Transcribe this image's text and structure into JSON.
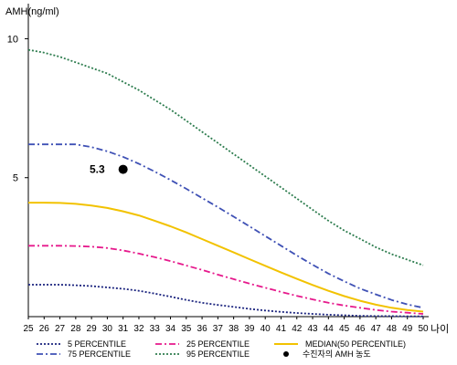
{
  "chart_data": {
    "type": "line",
    "ylabel": "AMH(ng/ml)",
    "xlabel": "나이",
    "x": [
      25,
      26,
      27,
      28,
      29,
      30,
      31,
      32,
      33,
      34,
      35,
      36,
      37,
      38,
      39,
      40,
      41,
      42,
      43,
      44,
      45,
      46,
      47,
      48,
      49,
      50
    ],
    "xlim": [
      25,
      50
    ],
    "ylim": [
      0,
      11
    ],
    "yticks": [
      5,
      10
    ],
    "grid": false,
    "legend_position": "bottom",
    "series": [
      {
        "name": "5 PERCENTILE",
        "color": "#1a237e",
        "style": "dotted",
        "values": [
          1.15,
          1.15,
          1.15,
          1.13,
          1.1,
          1.05,
          1.0,
          0.93,
          0.83,
          0.72,
          0.6,
          0.5,
          0.42,
          0.35,
          0.28,
          0.22,
          0.17,
          0.13,
          0.1,
          0.07,
          0.05,
          0.03,
          0.02,
          0.02,
          0.01,
          0.01
        ]
      },
      {
        "name": "25 PERCENTILE",
        "color": "#e6198c",
        "style": "dashdot",
        "values": [
          2.55,
          2.55,
          2.55,
          2.54,
          2.52,
          2.47,
          2.38,
          2.27,
          2.14,
          2.0,
          1.84,
          1.68,
          1.51,
          1.35,
          1.19,
          1.04,
          0.89,
          0.75,
          0.62,
          0.5,
          0.4,
          0.32,
          0.24,
          0.18,
          0.14,
          0.1
        ]
      },
      {
        "name": "MEDIAN(50 PERCENTILE)",
        "color": "#f2c200",
        "style": "solid",
        "values": [
          4.1,
          4.1,
          4.09,
          4.06,
          4.0,
          3.91,
          3.79,
          3.64,
          3.45,
          3.25,
          3.03,
          2.79,
          2.55,
          2.31,
          2.07,
          1.83,
          1.59,
          1.36,
          1.14,
          0.93,
          0.74,
          0.57,
          0.43,
          0.32,
          0.24,
          0.18
        ]
      },
      {
        "name": "75 PERCENTILE",
        "color": "#3f51b5",
        "style": "dashdot",
        "values": [
          6.2,
          6.2,
          6.2,
          6.2,
          6.1,
          5.95,
          5.75,
          5.5,
          5.22,
          4.92,
          4.6,
          4.27,
          3.94,
          3.6,
          3.25,
          2.9,
          2.55,
          2.2,
          1.87,
          1.55,
          1.27,
          1.01,
          0.8,
          0.6,
          0.44,
          0.32
        ]
      },
      {
        "name": "95 PERCENTILE",
        "color": "#2e7d4f",
        "style": "dotted",
        "values": [
          9.6,
          9.5,
          9.35,
          9.15,
          8.95,
          8.75,
          8.45,
          8.15,
          7.8,
          7.45,
          7.05,
          6.65,
          6.25,
          5.85,
          5.45,
          5.05,
          4.65,
          4.25,
          3.85,
          3.45,
          3.1,
          2.8,
          2.5,
          2.25,
          2.05,
          1.85
        ]
      }
    ],
    "markers": [
      {
        "name": "수진자의 AMH 농도",
        "x": 31,
        "y": 5.3,
        "label": "5.3",
        "color": "#000000"
      }
    ]
  }
}
